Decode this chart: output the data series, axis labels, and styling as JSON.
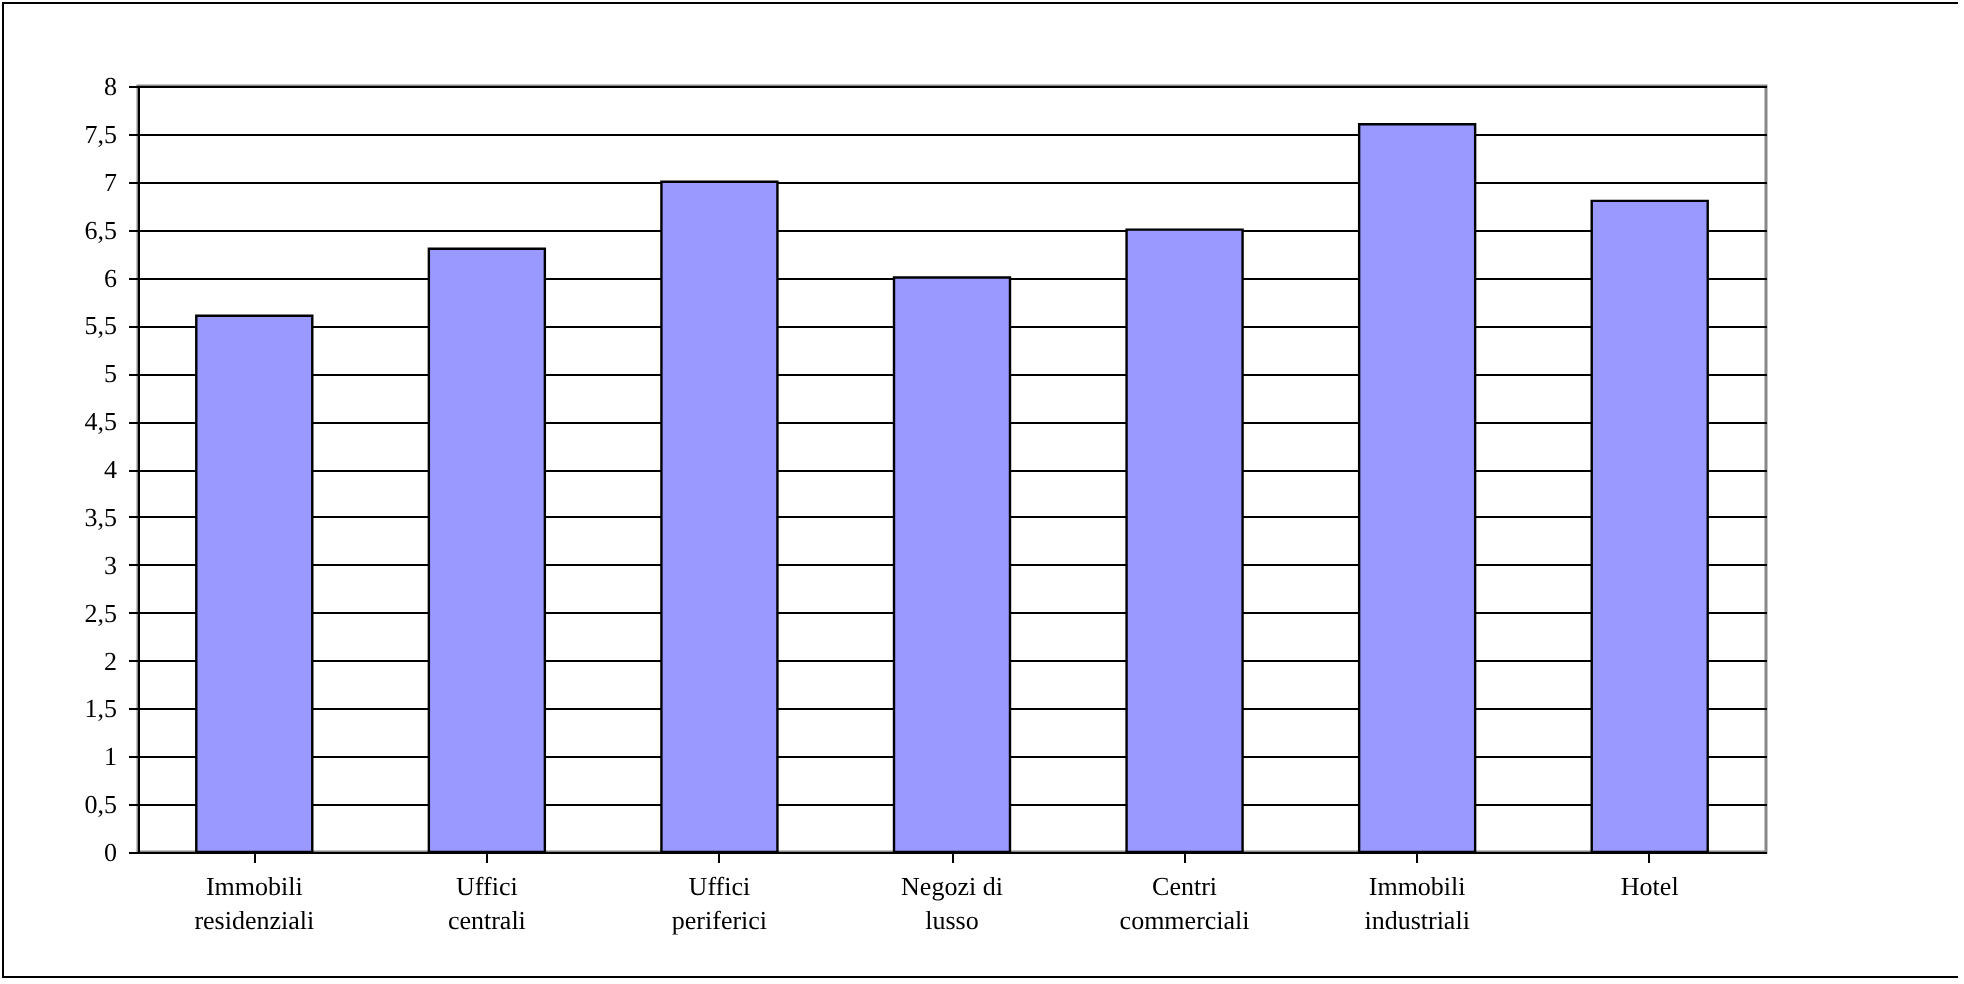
{
  "chart_data": {
    "type": "bar",
    "categories": [
      "Immobili\nresidenziali",
      "Uffici\ncentrali",
      "Uffici\nperiferici",
      "Negozi di\nlusso",
      "Centri\ncommerciali",
      "Immobili\nindustriali",
      "Hotel"
    ],
    "values": [
      5.6,
      6.3,
      7.0,
      6.0,
      6.5,
      7.6,
      6.8
    ],
    "color": "#9999ff",
    "ylim": [
      0,
      8
    ],
    "yticks": [
      0,
      {
        "value": 0.5,
        "label": "0,5"
      },
      1,
      {
        "value": 1.5,
        "label": "1,5"
      },
      2,
      {
        "value": 2.5,
        "label": "2,5"
      },
      3,
      {
        "value": 3.5,
        "label": "3,5"
      },
      4,
      {
        "value": 4.5,
        "label": "4,5"
      },
      5,
      {
        "value": 5.5,
        "label": "5,5"
      },
      6,
      {
        "value": 6.5,
        "label": "6,5"
      },
      7,
      {
        "value": 7.5,
        "label": "7,5"
      },
      8
    ],
    "grid": true
  }
}
